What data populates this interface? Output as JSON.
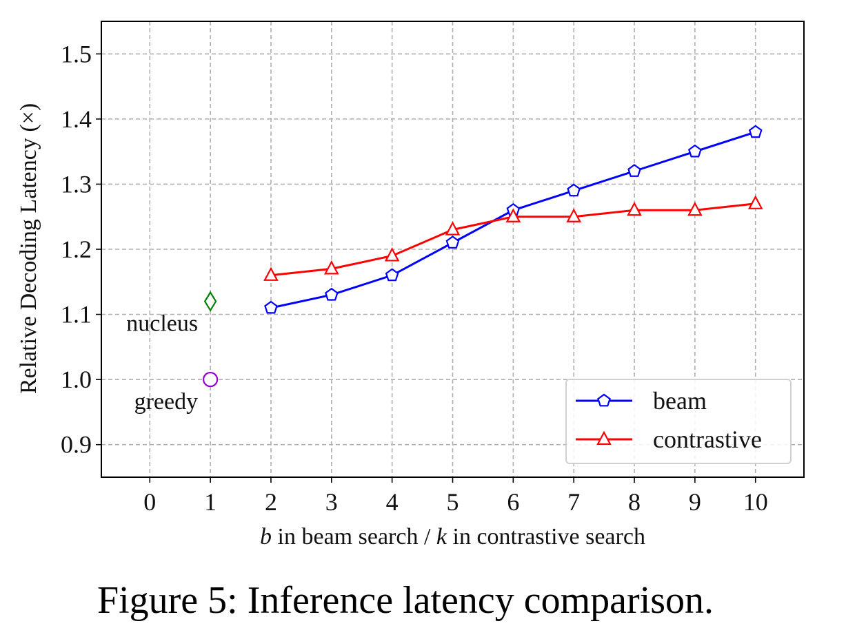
{
  "caption": "Figure 5: Inference latency comparison.",
  "chart_data": {
    "type": "line",
    "xlabel_parts": [
      {
        "text": "b",
        "italic": true
      },
      {
        "text": " in beam search / ",
        "italic": false
      },
      {
        "text": "k",
        "italic": true
      },
      {
        "text": " in contrastive search",
        "italic": false
      }
    ],
    "ylabel": "Relative Decoding Latency (×)",
    "xlim": [
      -0.8,
      10.8
    ],
    "ylim": [
      0.85,
      1.55
    ],
    "xticks": [
      0,
      1,
      2,
      3,
      4,
      5,
      6,
      7,
      8,
      9,
      10
    ],
    "yticks": [
      0.9,
      1.0,
      1.1,
      1.2,
      1.3,
      1.4,
      1.5
    ],
    "ytick_labels": [
      "0.9",
      "1.0",
      "1.1",
      "1.2",
      "1.3",
      "1.4",
      "1.5"
    ],
    "grid": true,
    "legend_position": "bottom-right",
    "series": [
      {
        "name": "beam",
        "color": "#0000ff",
        "marker": "pentagon",
        "x": [
          2,
          3,
          4,
          5,
          6,
          7,
          8,
          9,
          10
        ],
        "y": [
          1.11,
          1.13,
          1.16,
          1.21,
          1.26,
          1.29,
          1.32,
          1.35,
          1.38
        ]
      },
      {
        "name": "contrastive",
        "color": "#ff0000",
        "marker": "triangle",
        "x": [
          2,
          3,
          4,
          5,
          6,
          7,
          8,
          9,
          10
        ],
        "y": [
          1.16,
          1.17,
          1.19,
          1.23,
          1.25,
          1.25,
          1.26,
          1.26,
          1.27
        ]
      }
    ],
    "points": [
      {
        "label": "nucleus",
        "x": 1,
        "y": 1.12,
        "color": "#008000",
        "marker": "diamond"
      },
      {
        "label": "greedy",
        "x": 1,
        "y": 1.0,
        "color": "#9400d3",
        "marker": "circle"
      }
    ]
  }
}
